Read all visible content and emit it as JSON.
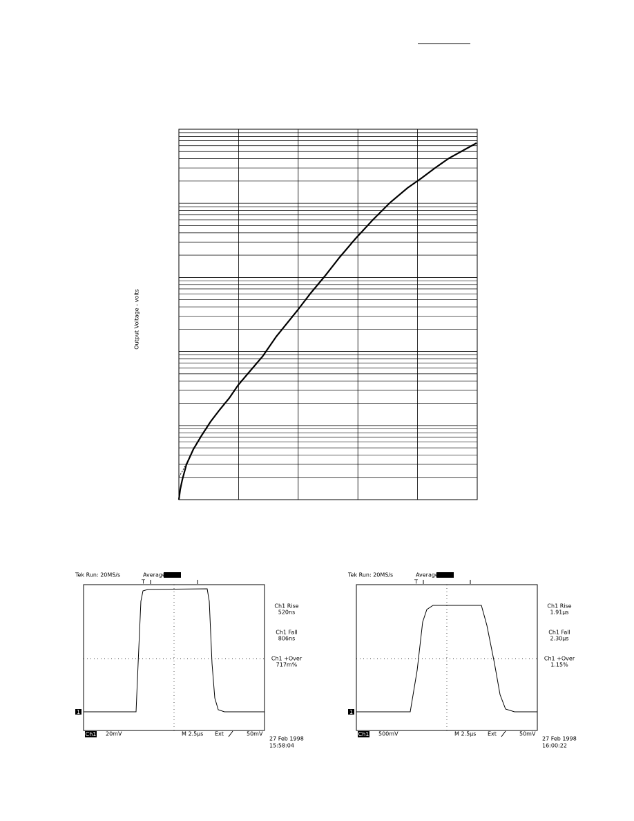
{
  "chart": {
    "y_label": "Output Voltage - volts"
  },
  "scopes": [
    {
      "header": "Tek Run: 20MS/s",
      "mode": "Average",
      "trigger_marker": "T",
      "channel_marker": "1",
      "measurements": [
        {
          "label": "Ch1 Rise",
          "value": "520ns"
        },
        {
          "label": "Ch1 Fall",
          "value": "806ns"
        },
        {
          "label": "Ch1 +Over",
          "value": "717m%"
        }
      ],
      "channel": "Ch1",
      "scale": "20mV",
      "timebase": "M 2.5µs",
      "trigger_source": "Ext",
      "trigger_level": "50mV",
      "date": "27 Feb 1998",
      "time": "15:58:04"
    },
    {
      "header": "Tek Run: 20MS/s",
      "mode": "Average",
      "trigger_marker": "T",
      "channel_marker": "1",
      "measurements": [
        {
          "label": "Ch1 Rise",
          "value": "1.91µs"
        },
        {
          "label": "Ch1 Fall",
          "value": "2.30µs"
        },
        {
          "label": "Ch1 +Over",
          "value": "1.15%"
        }
      ],
      "channel": "Ch1",
      "scale": "500mV",
      "timebase": "M 2.5µs",
      "trigger_source": "Ext",
      "trigger_level": "50mV",
      "date": "27 Feb 1998",
      "time": "16:00:22"
    }
  ]
}
